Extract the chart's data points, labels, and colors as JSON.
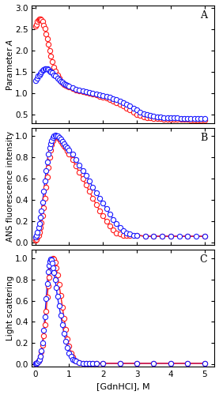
{
  "title_A": "A",
  "title_B": "B",
  "title_C": "C",
  "ylabel_A": "Parameter $\\mathit{A}$",
  "ylabel_B": "ANS fluorescence intensity",
  "ylabel_C": "Light scattering",
  "xlabel": "[GdnHCl], M",
  "xlim": [
    -0.1,
    5.3
  ],
  "ylim_A": [
    0.3,
    3.05
  ],
  "ylim_B": [
    -0.02,
    1.08
  ],
  "ylim_C": [
    -0.02,
    1.08
  ],
  "yticks_A": [
    0.5,
    1.0,
    1.5,
    2.0,
    2.5,
    3.0
  ],
  "yticks_B": [
    0.0,
    0.2,
    0.4,
    0.6,
    0.8,
    1.0
  ],
  "yticks_C": [
    0.0,
    0.2,
    0.4,
    0.6,
    0.8,
    1.0
  ],
  "xticks": [
    0,
    1,
    2,
    3,
    4,
    5
  ],
  "color_blue": "#1a1aff",
  "color_red": "#ff1a1a",
  "blue_scatter_A": [
    [
      0.0,
      1.3
    ],
    [
      0.05,
      1.35
    ],
    [
      0.08,
      1.4
    ],
    [
      0.12,
      1.43
    ],
    [
      0.15,
      1.46
    ],
    [
      0.18,
      1.5
    ],
    [
      0.22,
      1.53
    ],
    [
      0.25,
      1.55
    ],
    [
      0.28,
      1.57
    ],
    [
      0.32,
      1.58
    ],
    [
      0.35,
      1.57
    ],
    [
      0.38,
      1.55
    ],
    [
      0.42,
      1.52
    ],
    [
      0.45,
      1.5
    ],
    [
      0.5,
      1.48
    ],
    [
      0.55,
      1.43
    ],
    [
      0.6,
      1.4
    ],
    [
      0.65,
      1.36
    ],
    [
      0.7,
      1.32
    ],
    [
      0.75,
      1.28
    ],
    [
      0.8,
      1.25
    ],
    [
      0.85,
      1.22
    ],
    [
      0.9,
      1.2
    ],
    [
      0.95,
      1.18
    ],
    [
      1.0,
      1.16
    ],
    [
      1.1,
      1.13
    ],
    [
      1.2,
      1.1
    ],
    [
      1.3,
      1.08
    ],
    [
      1.4,
      1.06
    ],
    [
      1.5,
      1.04
    ],
    [
      1.6,
      1.02
    ],
    [
      1.7,
      1.0
    ],
    [
      1.8,
      0.98
    ],
    [
      1.9,
      0.96
    ],
    [
      2.0,
      0.94
    ],
    [
      2.1,
      0.92
    ],
    [
      2.2,
      0.9
    ],
    [
      2.3,
      0.87
    ],
    [
      2.4,
      0.85
    ],
    [
      2.5,
      0.82
    ],
    [
      2.6,
      0.78
    ],
    [
      2.7,
      0.74
    ],
    [
      2.8,
      0.7
    ],
    [
      2.9,
      0.65
    ],
    [
      3.0,
      0.6
    ],
    [
      3.1,
      0.55
    ],
    [
      3.2,
      0.52
    ],
    [
      3.3,
      0.49
    ],
    [
      3.4,
      0.47
    ],
    [
      3.5,
      0.46
    ],
    [
      3.6,
      0.45
    ],
    [
      3.7,
      0.44
    ],
    [
      3.8,
      0.43
    ],
    [
      3.9,
      0.43
    ],
    [
      4.0,
      0.42
    ],
    [
      4.1,
      0.42
    ],
    [
      4.2,
      0.42
    ],
    [
      4.3,
      0.41
    ],
    [
      4.4,
      0.41
    ],
    [
      4.5,
      0.41
    ],
    [
      4.6,
      0.41
    ],
    [
      4.7,
      0.41
    ],
    [
      4.8,
      0.4
    ],
    [
      4.9,
      0.4
    ],
    [
      5.0,
      0.4
    ]
  ],
  "red_scatter_A": [
    [
      0.0,
      2.58
    ],
    [
      0.03,
      2.62
    ],
    [
      0.06,
      2.68
    ],
    [
      0.09,
      2.72
    ],
    [
      0.12,
      2.74
    ],
    [
      0.15,
      2.74
    ],
    [
      0.18,
      2.72
    ],
    [
      0.21,
      2.68
    ],
    [
      0.25,
      2.6
    ],
    [
      0.28,
      2.52
    ],
    [
      0.32,
      2.4
    ],
    [
      0.35,
      2.28
    ],
    [
      0.38,
      2.15
    ],
    [
      0.42,
      2.0
    ],
    [
      0.45,
      1.88
    ],
    [
      0.5,
      1.75
    ],
    [
      0.55,
      1.62
    ],
    [
      0.6,
      1.52
    ],
    [
      0.65,
      1.42
    ],
    [
      0.7,
      1.35
    ],
    [
      0.75,
      1.28
    ],
    [
      0.8,
      1.24
    ],
    [
      0.85,
      1.2
    ],
    [
      0.9,
      1.18
    ],
    [
      0.95,
      1.16
    ],
    [
      1.0,
      1.14
    ],
    [
      1.1,
      1.11
    ],
    [
      1.2,
      1.08
    ],
    [
      1.3,
      1.06
    ],
    [
      1.4,
      1.04
    ],
    [
      1.5,
      1.02
    ],
    [
      1.6,
      1.0
    ],
    [
      1.7,
      0.98
    ],
    [
      1.8,
      0.96
    ],
    [
      1.9,
      0.93
    ],
    [
      2.0,
      0.91
    ],
    [
      2.1,
      0.88
    ],
    [
      2.2,
      0.85
    ],
    [
      2.3,
      0.82
    ],
    [
      2.4,
      0.78
    ],
    [
      2.5,
      0.74
    ],
    [
      2.6,
      0.7
    ],
    [
      2.7,
      0.65
    ],
    [
      2.8,
      0.6
    ],
    [
      2.9,
      0.55
    ],
    [
      3.0,
      0.5
    ],
    [
      3.1,
      0.47
    ],
    [
      3.2,
      0.44
    ],
    [
      3.3,
      0.43
    ],
    [
      3.4,
      0.42
    ],
    [
      3.5,
      0.41
    ],
    [
      3.6,
      0.4
    ],
    [
      3.7,
      0.4
    ],
    [
      3.8,
      0.39
    ],
    [
      3.9,
      0.39
    ],
    [
      4.0,
      0.39
    ],
    [
      4.1,
      0.38
    ],
    [
      4.2,
      0.38
    ],
    [
      4.3,
      0.38
    ],
    [
      4.4,
      0.38
    ],
    [
      4.5,
      0.38
    ],
    [
      4.6,
      0.37
    ],
    [
      4.7,
      0.37
    ],
    [
      4.8,
      0.37
    ],
    [
      4.9,
      0.37
    ],
    [
      5.0,
      0.37
    ]
  ],
  "blue_scatter_B": [
    [
      0.0,
      0.05
    ],
    [
      0.03,
      0.07
    ],
    [
      0.06,
      0.1
    ],
    [
      0.09,
      0.14
    ],
    [
      0.12,
      0.18
    ],
    [
      0.15,
      0.24
    ],
    [
      0.18,
      0.3
    ],
    [
      0.21,
      0.38
    ],
    [
      0.25,
      0.48
    ],
    [
      0.28,
      0.58
    ],
    [
      0.32,
      0.68
    ],
    [
      0.35,
      0.76
    ],
    [
      0.38,
      0.83
    ],
    [
      0.42,
      0.89
    ],
    [
      0.45,
      0.93
    ],
    [
      0.48,
      0.96
    ],
    [
      0.52,
      0.99
    ],
    [
      0.55,
      1.0
    ],
    [
      0.58,
      1.01
    ],
    [
      0.62,
      1.0
    ],
    [
      0.65,
      1.0
    ],
    [
      0.7,
      0.99
    ],
    [
      0.75,
      0.97
    ],
    [
      0.8,
      0.95
    ],
    [
      0.85,
      0.93
    ],
    [
      0.9,
      0.91
    ],
    [
      0.95,
      0.89
    ],
    [
      1.0,
      0.87
    ],
    [
      1.1,
      0.83
    ],
    [
      1.2,
      0.78
    ],
    [
      1.3,
      0.73
    ],
    [
      1.4,
      0.68
    ],
    [
      1.5,
      0.63
    ],
    [
      1.6,
      0.58
    ],
    [
      1.7,
      0.52
    ],
    [
      1.8,
      0.47
    ],
    [
      1.9,
      0.42
    ],
    [
      2.0,
      0.37
    ],
    [
      2.1,
      0.32
    ],
    [
      2.2,
      0.27
    ],
    [
      2.3,
      0.22
    ],
    [
      2.4,
      0.18
    ],
    [
      2.5,
      0.14
    ],
    [
      2.6,
      0.11
    ],
    [
      2.7,
      0.09
    ],
    [
      2.8,
      0.08
    ],
    [
      2.9,
      0.07
    ],
    [
      3.0,
      0.07
    ],
    [
      3.25,
      0.06
    ],
    [
      3.5,
      0.06
    ],
    [
      3.75,
      0.06
    ],
    [
      4.0,
      0.06
    ],
    [
      4.25,
      0.06
    ],
    [
      4.5,
      0.06
    ],
    [
      4.75,
      0.06
    ],
    [
      5.0,
      0.06
    ]
  ],
  "red_scatter_B": [
    [
      0.0,
      0.02
    ],
    [
      0.03,
      0.03
    ],
    [
      0.06,
      0.05
    ],
    [
      0.09,
      0.07
    ],
    [
      0.12,
      0.1
    ],
    [
      0.15,
      0.14
    ],
    [
      0.18,
      0.19
    ],
    [
      0.21,
      0.25
    ],
    [
      0.25,
      0.33
    ],
    [
      0.28,
      0.42
    ],
    [
      0.32,
      0.52
    ],
    [
      0.35,
      0.62
    ],
    [
      0.38,
      0.71
    ],
    [
      0.42,
      0.8
    ],
    [
      0.45,
      0.87
    ],
    [
      0.48,
      0.92
    ],
    [
      0.52,
      0.96
    ],
    [
      0.55,
      0.99
    ],
    [
      0.58,
      1.0
    ],
    [
      0.62,
      1.0
    ],
    [
      0.65,
      0.99
    ],
    [
      0.7,
      0.97
    ],
    [
      0.75,
      0.95
    ],
    [
      0.8,
      0.93
    ],
    [
      0.85,
      0.91
    ],
    [
      0.9,
      0.89
    ],
    [
      0.95,
      0.86
    ],
    [
      1.0,
      0.83
    ],
    [
      1.1,
      0.78
    ],
    [
      1.2,
      0.72
    ],
    [
      1.3,
      0.66
    ],
    [
      1.4,
      0.6
    ],
    [
      1.5,
      0.54
    ],
    [
      1.6,
      0.48
    ],
    [
      1.7,
      0.42
    ],
    [
      1.8,
      0.36
    ],
    [
      1.9,
      0.3
    ],
    [
      2.0,
      0.25
    ],
    [
      2.1,
      0.2
    ],
    [
      2.2,
      0.16
    ],
    [
      2.3,
      0.12
    ],
    [
      2.4,
      0.09
    ],
    [
      2.5,
      0.08
    ],
    [
      2.6,
      0.07
    ],
    [
      2.7,
      0.07
    ],
    [
      2.8,
      0.07
    ],
    [
      3.0,
      0.07
    ],
    [
      3.25,
      0.06
    ],
    [
      3.5,
      0.06
    ],
    [
      3.75,
      0.06
    ],
    [
      4.0,
      0.06
    ],
    [
      4.5,
      0.06
    ],
    [
      5.0,
      0.06
    ]
  ],
  "blue_scatter_C": [
    [
      0.0,
      0.01
    ],
    [
      0.03,
      0.01
    ],
    [
      0.06,
      0.02
    ],
    [
      0.09,
      0.03
    ],
    [
      0.12,
      0.05
    ],
    [
      0.15,
      0.08
    ],
    [
      0.18,
      0.13
    ],
    [
      0.21,
      0.2
    ],
    [
      0.25,
      0.32
    ],
    [
      0.28,
      0.45
    ],
    [
      0.32,
      0.62
    ],
    [
      0.35,
      0.76
    ],
    [
      0.38,
      0.87
    ],
    [
      0.4,
      0.93
    ],
    [
      0.42,
      0.97
    ],
    [
      0.45,
      0.99
    ],
    [
      0.48,
      0.98
    ],
    [
      0.5,
      0.95
    ],
    [
      0.52,
      0.91
    ],
    [
      0.55,
      0.86
    ],
    [
      0.58,
      0.8
    ],
    [
      0.62,
      0.72
    ],
    [
      0.65,
      0.64
    ],
    [
      0.7,
      0.55
    ],
    [
      0.75,
      0.46
    ],
    [
      0.8,
      0.37
    ],
    [
      0.85,
      0.29
    ],
    [
      0.9,
      0.22
    ],
    [
      0.95,
      0.16
    ],
    [
      1.0,
      0.11
    ],
    [
      1.05,
      0.08
    ],
    [
      1.1,
      0.05
    ],
    [
      1.15,
      0.04
    ],
    [
      1.2,
      0.03
    ],
    [
      1.3,
      0.02
    ],
    [
      1.4,
      0.01
    ],
    [
      1.5,
      0.01
    ],
    [
      1.6,
      0.01
    ],
    [
      1.7,
      0.01
    ],
    [
      1.8,
      0.01
    ],
    [
      2.0,
      0.01
    ],
    [
      2.5,
      0.01
    ],
    [
      3.0,
      0.01
    ],
    [
      3.5,
      0.01
    ],
    [
      4.0,
      0.01
    ],
    [
      4.5,
      0.01
    ],
    [
      5.0,
      0.01
    ]
  ],
  "red_scatter_C": [
    [
      0.0,
      0.01
    ],
    [
      0.03,
      0.01
    ],
    [
      0.06,
      0.02
    ],
    [
      0.09,
      0.03
    ],
    [
      0.12,
      0.05
    ],
    [
      0.15,
      0.08
    ],
    [
      0.18,
      0.12
    ],
    [
      0.21,
      0.18
    ],
    [
      0.25,
      0.27
    ],
    [
      0.28,
      0.37
    ],
    [
      0.32,
      0.5
    ],
    [
      0.35,
      0.63
    ],
    [
      0.38,
      0.74
    ],
    [
      0.4,
      0.82
    ],
    [
      0.42,
      0.88
    ],
    [
      0.45,
      0.93
    ],
    [
      0.48,
      0.97
    ],
    [
      0.5,
      0.99
    ],
    [
      0.52,
      1.0
    ],
    [
      0.55,
      0.99
    ],
    [
      0.58,
      0.96
    ],
    [
      0.62,
      0.91
    ],
    [
      0.65,
      0.84
    ],
    [
      0.7,
      0.75
    ],
    [
      0.75,
      0.65
    ],
    [
      0.8,
      0.54
    ],
    [
      0.85,
      0.43
    ],
    [
      0.9,
      0.33
    ],
    [
      0.95,
      0.24
    ],
    [
      1.0,
      0.17
    ],
    [
      1.05,
      0.11
    ],
    [
      1.1,
      0.07
    ],
    [
      1.15,
      0.04
    ],
    [
      1.2,
      0.03
    ],
    [
      1.3,
      0.02
    ],
    [
      1.4,
      0.01
    ],
    [
      1.5,
      0.01
    ],
    [
      1.6,
      0.01
    ],
    [
      1.7,
      0.01
    ],
    [
      1.8,
      0.01
    ],
    [
      2.0,
      0.01
    ],
    [
      2.5,
      0.01
    ],
    [
      3.0,
      0.01
    ],
    [
      3.5,
      0.01
    ],
    [
      4.0,
      0.01
    ],
    [
      4.5,
      0.01
    ],
    [
      5.0,
      0.01
    ]
  ],
  "marker_size": 4.5,
  "line_width": 1.0,
  "figsize": [
    2.77,
    5.0
  ],
  "dpi": 100
}
